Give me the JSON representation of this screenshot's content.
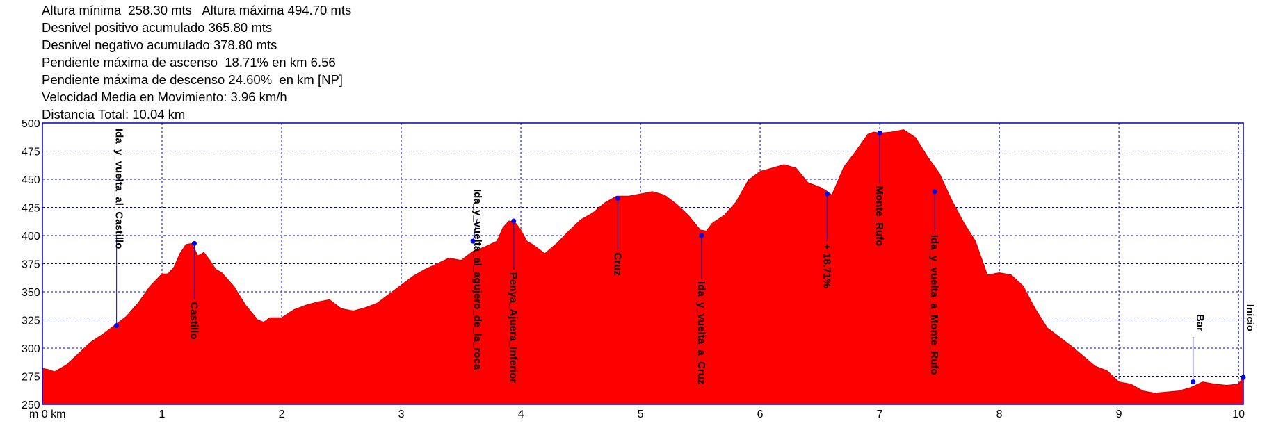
{
  "stats": {
    "lines": [
      "Altura mínima  258.30 mts   Altura máxima 494.70 mts",
      "Desnivel positivo acumulado 365.80 mts",
      "Desnivel negativo acumulado 378.80 mts",
      "Pendiente máxima de ascenso  18.71% en km 6.56",
      "Pendiente máxima de descenso 24.60%  en km [NP]",
      "Velocidad Media en Movimiento: 3.96 km/h",
      "Distancia Total: 10.04 km"
    ]
  },
  "chart_data": {
    "type": "area",
    "title": "",
    "xlabel": "m 0 km",
    "ylabel": "",
    "xlim": [
      0,
      10.04
    ],
    "ylim": [
      250,
      500
    ],
    "x_ticks": [
      1,
      2,
      3,
      4,
      5,
      6,
      7,
      8,
      9,
      10
    ],
    "y_ticks": [
      250,
      275,
      300,
      325,
      350,
      375,
      400,
      425,
      450,
      475,
      500
    ],
    "grid": true,
    "fill_color": "#ff0000",
    "frame_color": "#0000cc",
    "profile": {
      "x": [
        0,
        0.05,
        0.1,
        0.2,
        0.3,
        0.4,
        0.5,
        0.6,
        0.7,
        0.8,
        0.9,
        1.0,
        1.05,
        1.1,
        1.15,
        1.2,
        1.25,
        1.3,
        1.35,
        1.4,
        1.45,
        1.5,
        1.6,
        1.7,
        1.8,
        1.85,
        1.9,
        2.0,
        2.1,
        2.2,
        2.3,
        2.4,
        2.5,
        2.6,
        2.7,
        2.8,
        2.9,
        3.0,
        3.1,
        3.2,
        3.3,
        3.4,
        3.5,
        3.6,
        3.7,
        3.8,
        3.85,
        3.9,
        3.95,
        4.0,
        4.05,
        4.1,
        4.2,
        4.3,
        4.4,
        4.5,
        4.6,
        4.7,
        4.8,
        4.9,
        5.0,
        5.1,
        5.2,
        5.3,
        5.4,
        5.5,
        5.55,
        5.6,
        5.7,
        5.8,
        5.9,
        6.0,
        6.1,
        6.2,
        6.3,
        6.4,
        6.5,
        6.55,
        6.6,
        6.7,
        6.8,
        6.9,
        6.95,
        7.0,
        7.1,
        7.2,
        7.3,
        7.4,
        7.5,
        7.6,
        7.7,
        7.8,
        7.9,
        8.0,
        8.1,
        8.2,
        8.3,
        8.4,
        8.5,
        8.6,
        8.7,
        8.8,
        8.9,
        9.0,
        9.1,
        9.2,
        9.3,
        9.4,
        9.5,
        9.6,
        9.7,
        9.8,
        9.9,
        10.0,
        10.04
      ],
      "y": [
        282,
        281,
        279,
        285,
        295,
        305,
        312,
        320,
        328,
        340,
        355,
        366,
        366,
        372,
        384,
        392,
        393,
        382,
        385,
        378,
        370,
        367,
        355,
        338,
        325,
        323,
        327,
        327,
        334,
        338,
        341,
        343,
        335,
        333,
        336,
        340,
        348,
        356,
        364,
        370,
        375,
        380,
        378,
        386,
        390,
        395,
        407,
        413,
        412,
        405,
        395,
        392,
        384,
        393,
        404,
        414,
        420,
        429,
        435,
        435,
        437,
        439,
        436,
        428,
        418,
        405,
        404,
        411,
        418,
        430,
        449,
        457,
        460,
        463,
        460,
        447,
        443,
        440,
        436,
        461,
        475,
        490,
        492,
        491,
        492,
        494,
        487,
        470,
        455,
        432,
        412,
        395,
        365,
        367,
        365,
        355,
        335,
        318,
        310,
        302,
        293,
        284,
        280,
        270,
        268,
        262,
        260,
        261,
        262,
        265,
        270,
        268,
        267,
        268,
        275
      ]
    },
    "waypoints": [
      {
        "name": "Ida_y_vuelta_al_Castillo",
        "x": 0.62,
        "y": 320
      },
      {
        "name": "Castillo",
        "x": 1.27,
        "y": 393
      },
      {
        "name": "Ida_y_vuelta_al_agujero_de_la_roca",
        "x": 3.6,
        "y": 395
      },
      {
        "name": "Penya_Ajuera_Inferior",
        "x": 3.94,
        "y": 413
      },
      {
        "name": "Cruz",
        "x": 4.81,
        "y": 433
      },
      {
        "name": "Ida_y_vuelta_a_Cruz",
        "x": 5.51,
        "y": 400
      },
      {
        "name": "+ 18.71%",
        "x": 6.56,
        "y": 437
      },
      {
        "name": "Monte_Rufo",
        "x": 7.0,
        "y": 491
      },
      {
        "name": "Ida_y_vuelta_a_Monte_Rufo",
        "x": 7.46,
        "y": 439
      },
      {
        "name": "Bar",
        "x": 9.62,
        "y": 270
      },
      {
        "name": "Inicio",
        "x": 10.04,
        "y": 274
      }
    ]
  }
}
